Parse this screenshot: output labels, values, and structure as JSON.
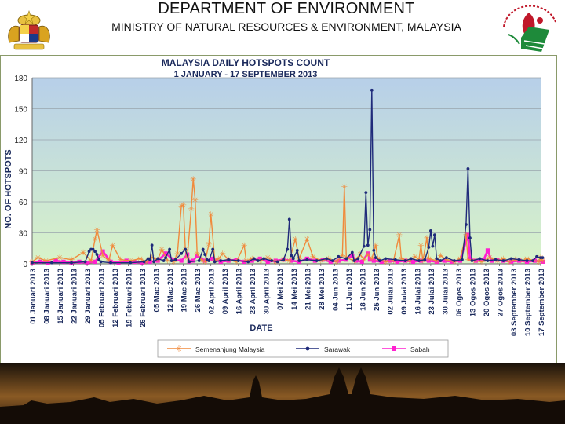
{
  "header": {
    "title": "DEPARTMENT OF ENVIRONMENT",
    "subtitle": "MINISTRY OF NATURAL RESOURCES & ENVIRONMENT, MALAYSIA"
  },
  "colors": {
    "semenanjung": "#f08a3c",
    "sarawak": "#1f2a7a",
    "sabah": "#ff1fd0",
    "plot_top": "#b7cfe9",
    "plot_bottom": "#d8f3c8",
    "title_text": "#1b2a5c"
  },
  "chart_data": {
    "type": "line",
    "title": "MALAYSIA DAILY HOTSPOTS COUNT",
    "subtitle": "1 JANUARY - 17 SEPTEMBER 2013",
    "xlabel": "DATE",
    "ylabel": "NO. OF HOTSPOTS",
    "ylim": [
      0,
      180
    ],
    "yticks": [
      0,
      30,
      60,
      90,
      120,
      150,
      180
    ],
    "grid": true,
    "legend_position": "bottom",
    "categories": [
      "01 Januari 2013",
      "08 Januari 2013",
      "15 Januari 2013",
      "22 Januari 2013",
      "29 Januari 2013",
      "05 Februari 2013",
      "12 Februari 2013",
      "19 Februari 2013",
      "26 Februari 2013",
      "05 Mac 2013",
      "12 Mac 2013",
      "19 Mac 2013",
      "26 Mac 2013",
      "02 April 2013",
      "09 April 2013",
      "16 April 2013",
      "23 April 2013",
      "30 April 2013",
      "07 Mei 2013",
      "14 Mei 2013",
      "21 Mei 2013",
      "28 Mei 2013",
      "04 Jun 2013",
      "11 Jun 2013",
      "18 Jun 2013",
      "25 Jun 2013",
      "02 Julai 2013",
      "09 Julai 2013",
      "16 Julai 2013",
      "23 Julai 2013",
      "30 Julai 2013",
      "06 Ogos 2013",
      "13 Ogos 2013",
      "20 Ogos 2013",
      "27 Ogos 2013",
      "03 September 2013",
      "10 September 2013",
      "17 September 2013"
    ],
    "series": [
      {
        "name": "Semenanjung Malaysia",
        "values": [
          [
            0,
            2
          ],
          [
            3,
            6
          ],
          [
            7,
            3
          ],
          [
            14,
            6
          ],
          [
            20,
            4
          ],
          [
            26,
            11
          ],
          [
            30,
            3
          ],
          [
            32,
            24
          ],
          [
            33,
            33
          ],
          [
            36,
            8
          ],
          [
            39,
            3
          ],
          [
            41,
            18
          ],
          [
            45,
            4
          ],
          [
            50,
            3
          ],
          [
            55,
            5
          ],
          [
            58,
            2
          ],
          [
            61,
            6
          ],
          [
            64,
            4
          ],
          [
            66,
            14
          ],
          [
            69,
            3
          ],
          [
            72,
            2
          ],
          [
            74,
            10
          ],
          [
            76,
            56
          ],
          [
            77,
            57
          ],
          [
            78,
            14
          ],
          [
            79,
            6
          ],
          [
            81,
            53
          ],
          [
            82,
            82
          ],
          [
            83,
            62
          ],
          [
            84,
            10
          ],
          [
            86,
            4
          ],
          [
            88,
            2
          ],
          [
            90,
            19
          ],
          [
            91,
            48
          ],
          [
            93,
            3
          ],
          [
            95,
            5
          ],
          [
            97,
            10
          ],
          [
            100,
            4
          ],
          [
            104,
            2
          ],
          [
            108,
            18
          ],
          [
            109,
            3
          ],
          [
            112,
            5
          ],
          [
            116,
            3
          ],
          [
            120,
            6
          ],
          [
            124,
            2
          ],
          [
            128,
            4
          ],
          [
            131,
            3
          ],
          [
            134,
            24
          ],
          [
            136,
            5
          ],
          [
            140,
            24
          ],
          [
            143,
            7
          ],
          [
            147,
            3
          ],
          [
            151,
            5
          ],
          [
            155,
            2
          ],
          [
            158,
            8
          ],
          [
            159,
            75
          ],
          [
            160,
            6
          ],
          [
            164,
            3
          ],
          [
            167,
            9
          ],
          [
            169,
            4
          ],
          [
            171,
            9
          ],
          [
            173,
            5
          ],
          [
            175,
            18
          ],
          [
            176,
            5
          ],
          [
            180,
            2
          ],
          [
            184,
            3
          ],
          [
            187,
            28
          ],
          [
            188,
            5
          ],
          [
            192,
            3
          ],
          [
            195,
            7
          ],
          [
            197,
            4
          ],
          [
            198,
            18
          ],
          [
            199,
            3
          ],
          [
            201,
            25
          ],
          [
            202,
            5
          ],
          [
            206,
            3
          ],
          [
            208,
            8
          ],
          [
            211,
            4
          ],
          [
            215,
            2
          ],
          [
            218,
            5
          ],
          [
            221,
            28
          ],
          [
            222,
            4
          ],
          [
            225,
            3
          ],
          [
            229,
            2
          ],
          [
            233,
            6
          ],
          [
            237,
            3
          ],
          [
            240,
            5
          ],
          [
            243,
            2
          ],
          [
            246,
            4
          ],
          [
            250,
            3
          ],
          [
            252,
            5
          ],
          [
            258,
            2
          ],
          [
            259,
            6
          ],
          [
            260,
            3
          ]
        ]
      },
      {
        "name": "Sarawak",
        "values": [
          [
            0,
            1
          ],
          [
            10,
            1
          ],
          [
            20,
            1
          ],
          [
            27,
            2
          ],
          [
            29,
            12
          ],
          [
            30,
            14
          ],
          [
            31,
            14
          ],
          [
            32,
            12
          ],
          [
            33,
            9
          ],
          [
            34,
            4
          ],
          [
            35,
            2
          ],
          [
            40,
            1
          ],
          [
            50,
            1
          ],
          [
            57,
            2
          ],
          [
            59,
            5
          ],
          [
            60,
            4
          ],
          [
            61,
            18
          ],
          [
            62,
            2
          ],
          [
            64,
            5
          ],
          [
            67,
            3
          ],
          [
            68,
            6
          ],
          [
            70,
            14
          ],
          [
            71,
            3
          ],
          [
            73,
            4
          ],
          [
            76,
            10
          ],
          [
            78,
            14
          ],
          [
            80,
            2
          ],
          [
            85,
            3
          ],
          [
            87,
            14
          ],
          [
            88,
            9
          ],
          [
            89,
            4
          ],
          [
            90,
            3
          ],
          [
            92,
            14
          ],
          [
            93,
            2
          ],
          [
            96,
            3
          ],
          [
            100,
            4
          ],
          [
            105,
            3
          ],
          [
            110,
            2
          ],
          [
            113,
            5
          ],
          [
            115,
            3
          ],
          [
            118,
            5
          ],
          [
            122,
            3
          ],
          [
            125,
            2
          ],
          [
            128,
            4
          ],
          [
            130,
            14
          ],
          [
            131,
            43
          ],
          [
            132,
            8
          ],
          [
            133,
            5
          ],
          [
            135,
            13
          ],
          [
            136,
            3
          ],
          [
            140,
            4
          ],
          [
            145,
            3
          ],
          [
            150,
            5
          ],
          [
            153,
            3
          ],
          [
            156,
            7
          ],
          [
            160,
            5
          ],
          [
            163,
            11
          ],
          [
            164,
            3
          ],
          [
            166,
            5
          ],
          [
            169,
            17
          ],
          [
            170,
            69
          ],
          [
            171,
            18
          ],
          [
            172,
            33
          ],
          [
            173,
            168
          ],
          [
            174,
            13
          ],
          [
            175,
            6
          ],
          [
            177,
            3
          ],
          [
            180,
            5
          ],
          [
            185,
            4
          ],
          [
            190,
            3
          ],
          [
            193,
            5
          ],
          [
            197,
            3
          ],
          [
            200,
            4
          ],
          [
            202,
            16
          ],
          [
            203,
            32
          ],
          [
            204,
            17
          ],
          [
            205,
            28
          ],
          [
            206,
            5
          ],
          [
            208,
            3
          ],
          [
            211,
            6
          ],
          [
            215,
            3
          ],
          [
            219,
            4
          ],
          [
            221,
            38
          ],
          [
            222,
            92
          ],
          [
            223,
            25
          ],
          [
            224,
            3
          ],
          [
            228,
            5
          ],
          [
            232,
            3
          ],
          [
            236,
            4
          ],
          [
            240,
            3
          ],
          [
            244,
            5
          ],
          [
            248,
            4
          ],
          [
            252,
            3
          ],
          [
            255,
            3
          ],
          [
            257,
            7
          ],
          [
            259,
            6
          ],
          [
            260,
            6
          ]
        ]
      },
      {
        "name": "Sabah",
        "values": [
          [
            0,
            1
          ],
          [
            4,
            2
          ],
          [
            8,
            1
          ],
          [
            12,
            3
          ],
          [
            16,
            2
          ],
          [
            20,
            1
          ],
          [
            24,
            2
          ],
          [
            28,
            1
          ],
          [
            32,
            2
          ],
          [
            36,
            12
          ],
          [
            40,
            2
          ],
          [
            44,
            1
          ],
          [
            48,
            3
          ],
          [
            52,
            2
          ],
          [
            56,
            1
          ],
          [
            60,
            2
          ],
          [
            64,
            3
          ],
          [
            68,
            10
          ],
          [
            72,
            4
          ],
          [
            76,
            3
          ],
          [
            79,
            9
          ],
          [
            80,
            2
          ],
          [
            82,
            3
          ],
          [
            84,
            8
          ],
          [
            88,
            3
          ],
          [
            92,
            5
          ],
          [
            96,
            2
          ],
          [
            100,
            3
          ],
          [
            104,
            4
          ],
          [
            108,
            2
          ],
          [
            112,
            3
          ],
          [
            116,
            5
          ],
          [
            120,
            2
          ],
          [
            124,
            3
          ],
          [
            128,
            4
          ],
          [
            132,
            3
          ],
          [
            136,
            2
          ],
          [
            140,
            5
          ],
          [
            144,
            3
          ],
          [
            148,
            4
          ],
          [
            152,
            2
          ],
          [
            156,
            3
          ],
          [
            160,
            4
          ],
          [
            163,
            8
          ],
          [
            165,
            3
          ],
          [
            168,
            2
          ],
          [
            171,
            10
          ],
          [
            172,
            4
          ],
          [
            174,
            3
          ],
          [
            178,
            2
          ],
          [
            182,
            3
          ],
          [
            186,
            2
          ],
          [
            190,
            3
          ],
          [
            194,
            2
          ],
          [
            198,
            3
          ],
          [
            202,
            3
          ],
          [
            206,
            2
          ],
          [
            210,
            3
          ],
          [
            214,
            2
          ],
          [
            218,
            3
          ],
          [
            222,
            28
          ],
          [
            223,
            5
          ],
          [
            226,
            3
          ],
          [
            230,
            4
          ],
          [
            232,
            13
          ],
          [
            234,
            3
          ],
          [
            237,
            4
          ],
          [
            240,
            3
          ],
          [
            244,
            2
          ],
          [
            248,
            3
          ],
          [
            252,
            2
          ],
          [
            256,
            3
          ],
          [
            260,
            2
          ]
        ]
      }
    ]
  }
}
